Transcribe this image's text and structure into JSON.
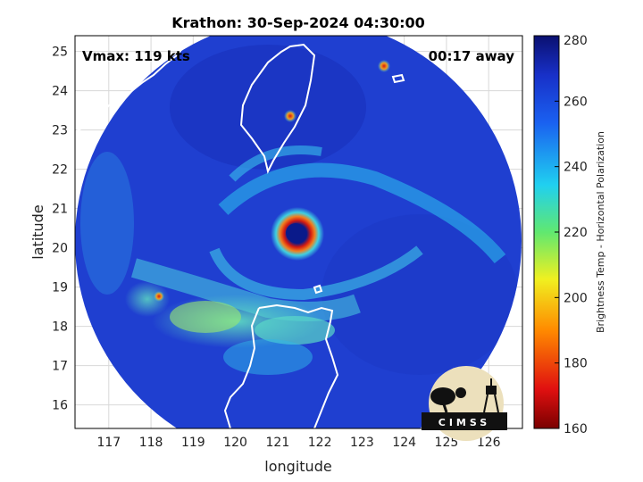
{
  "title": "Krathon: 30-Sep-2024 04:30:00",
  "vmax_label": "Vmax: 119 kts",
  "time_away_label": "00:17 away",
  "xlabel": "longitude",
  "ylabel": "latitude",
  "x_ticks": [
    "117",
    "118",
    "119",
    "120",
    "121",
    "122",
    "123",
    "124",
    "125",
    "126"
  ],
  "y_ticks": [
    "25",
    "24",
    "23",
    "22",
    "21",
    "20",
    "19",
    "18",
    "17",
    "16"
  ],
  "colorbar": {
    "label": "Brightness Temp - Horizontal Polarization",
    "ticks": [
      "280",
      "260",
      "240",
      "220",
      "200",
      "180",
      "160"
    ],
    "range": [
      160,
      280
    ]
  },
  "logo_text": "CIMSS",
  "map": {
    "lon_range": [
      116.2,
      126.8
    ],
    "lat_range": [
      15.4,
      25.4
    ],
    "storm_center": {
      "lon": 121.3,
      "lat": 20.4
    },
    "swath_center": {
      "lon": 121.4,
      "lat": 20.7
    }
  },
  "colors": {
    "background_blue": "#1f3fd0",
    "eye": "#0a1a8a",
    "eyewall_red": "#d41a10",
    "convection_cyan": "#31d8e8",
    "coastline": "#ffffff"
  }
}
